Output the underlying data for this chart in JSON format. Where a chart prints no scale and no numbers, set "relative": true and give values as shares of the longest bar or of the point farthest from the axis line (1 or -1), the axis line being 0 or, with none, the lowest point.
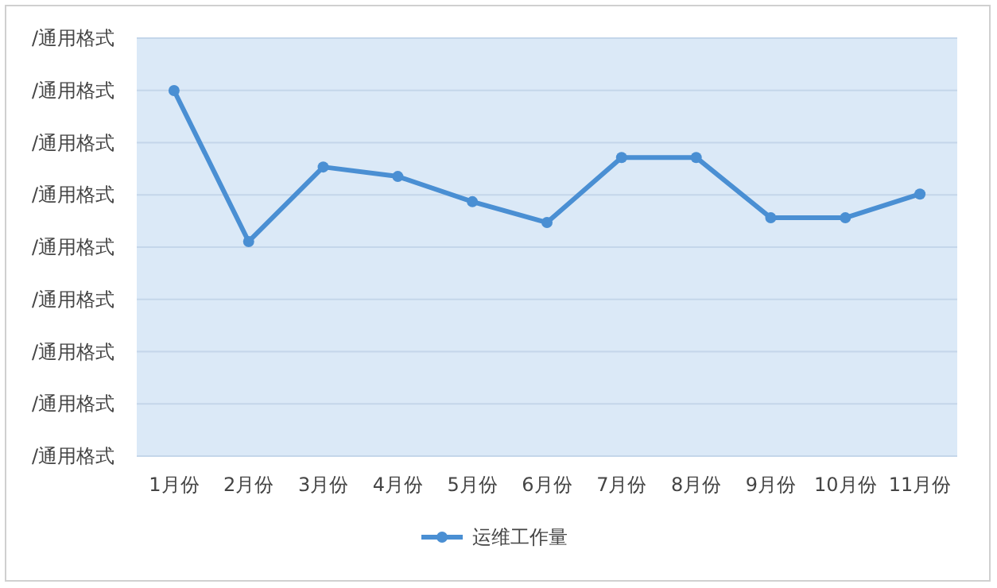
{
  "chart_data": {
    "type": "line",
    "relative": true,
    "categories": [
      "1月份",
      "2月份",
      "3月份",
      "4月份",
      "5月份",
      "6月份",
      "7月份",
      "8月份",
      "9月份",
      "10月份",
      "11月份"
    ],
    "series": [
      {
        "name": "运维工作量",
        "color": "#4a8fd3",
        "values": [
          1,
          0.587,
          0.791,
          0.765,
          0.696,
          0.639,
          0.817,
          0.817,
          0.652,
          0.652,
          0.717
        ]
      }
    ],
    "annotations": [
      "/通用格式",
      "/通用格式",
      "/通用格式",
      "/通用格式",
      "/通用格式",
      "/通用格式",
      "/通用格式",
      "/通用格式",
      "/通用格式"
    ],
    "grid": "y",
    "legend": "bottom",
    "marker": "circle",
    "line_style": "solid"
  }
}
